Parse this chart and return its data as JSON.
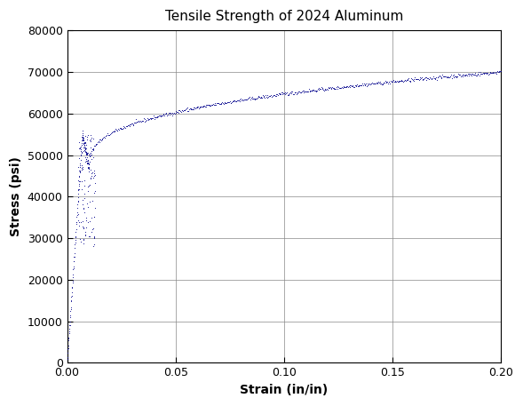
{
  "title": "Tensile Strength of 2024 Aluminum",
  "xlabel": "Strain (in/in)",
  "ylabel": "Stress (psi)",
  "xlim": [
    0.0,
    0.2
  ],
  "ylim": [
    0,
    80000
  ],
  "xticks": [
    0.0,
    0.05,
    0.1,
    0.15,
    0.2
  ],
  "yticks": [
    0,
    10000,
    20000,
    30000,
    40000,
    50000,
    60000,
    70000,
    80000
  ],
  "point_color": "#00008B",
  "marker_size": 1.5,
  "background_color": "#ffffff",
  "grid_color": "#000000",
  "title_fontsize": 11,
  "label_fontsize": 10,
  "axis_label_fontsize": 10
}
